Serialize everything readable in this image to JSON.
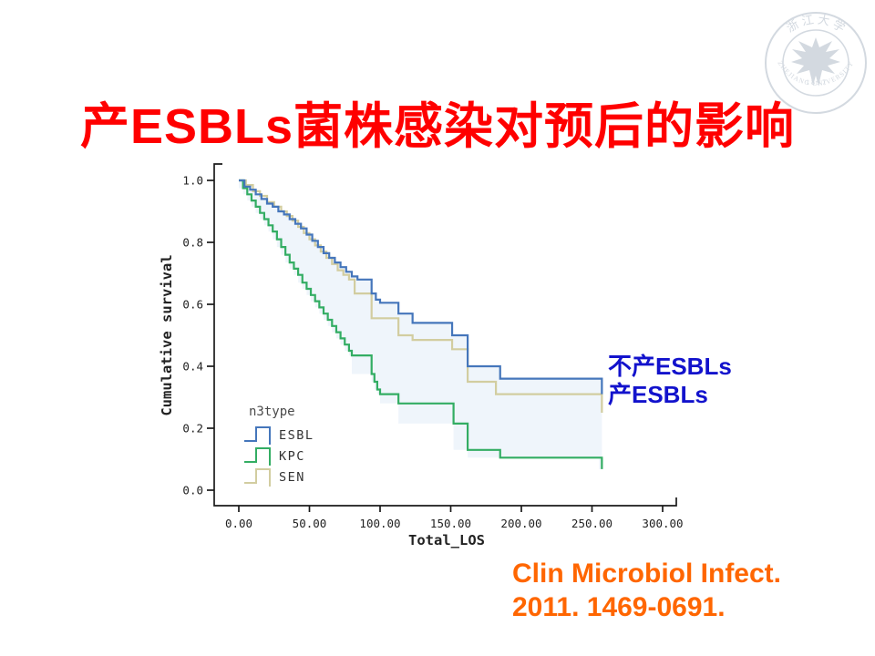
{
  "slide": {
    "title": "产ESBLs菌株感染对预后的影响",
    "title_color": "#ff0000",
    "background": "#ffffff"
  },
  "logo": {
    "description": "zhejiang-university-seal-watermark",
    "top_text": "浙 江 大 学",
    "year": "1 8 9 7",
    "bottom_text": "ZHEJIANG UNIVERSITY",
    "color": "#d3d9e0"
  },
  "annotations": {
    "line1": "不产ESBLs",
    "line2": "产ESBLs",
    "color": "#1212cc"
  },
  "citation": {
    "line1": "Clin Microbiol Infect.",
    "line2": "2011. 1469-0691.",
    "color": "#ff6600"
  },
  "chart_data": {
    "type": "line",
    "subtype": "kaplan-meier-step",
    "title": "",
    "xlabel": "Total_LOS",
    "ylabel": "Cumulative survival",
    "xlim": [
      0,
      300
    ],
    "ylim": [
      0.0,
      1.0
    ],
    "xticks": [
      "0.00",
      "50.00",
      "100.00",
      "150.00",
      "200.00",
      "250.00",
      "300.00"
    ],
    "xtick_values": [
      0,
      50,
      100,
      150,
      200,
      250,
      300
    ],
    "yticks": [
      "0.0",
      "0.2",
      "0.4",
      "0.6",
      "0.8",
      "1.0"
    ],
    "ytick_values": [
      0,
      0.2,
      0.4,
      0.6,
      0.8,
      1.0
    ],
    "grid": false,
    "legend": {
      "title": "n3type",
      "position": "inside-lower-left"
    },
    "axis_color": "#1a1a1a",
    "fill_between": {
      "upper": "ESBL",
      "lower": "KPC",
      "color": "#dfecf7",
      "opacity": 0.5
    },
    "series": [
      {
        "name": "ESBL",
        "color": "#4576bb",
        "points": [
          [
            0,
            1.0
          ],
          [
            4,
            0.98
          ],
          [
            8,
            0.97
          ],
          [
            12,
            0.955
          ],
          [
            16,
            0.94
          ],
          [
            20,
            0.925
          ],
          [
            24,
            0.915
          ],
          [
            28,
            0.9
          ],
          [
            32,
            0.89
          ],
          [
            36,
            0.875
          ],
          [
            40,
            0.86
          ],
          [
            44,
            0.845
          ],
          [
            48,
            0.825
          ],
          [
            52,
            0.805
          ],
          [
            56,
            0.785
          ],
          [
            60,
            0.765
          ],
          [
            64,
            0.75
          ],
          [
            68,
            0.735
          ],
          [
            72,
            0.72
          ],
          [
            76,
            0.705
          ],
          [
            80,
            0.69
          ],
          [
            84,
            0.68
          ],
          [
            94,
            0.635
          ],
          [
            97,
            0.615
          ],
          [
            100,
            0.605
          ],
          [
            113,
            0.57
          ],
          [
            123,
            0.54
          ],
          [
            151,
            0.5
          ],
          [
            162,
            0.4
          ],
          [
            185,
            0.36
          ],
          [
            255,
            0.36
          ],
          [
            257,
            0.31
          ]
        ]
      },
      {
        "name": "KPC",
        "color": "#33ad63",
        "points": [
          [
            0,
            1.0
          ],
          [
            3,
            0.975
          ],
          [
            6,
            0.955
          ],
          [
            9,
            0.935
          ],
          [
            12,
            0.915
          ],
          [
            15,
            0.895
          ],
          [
            18,
            0.875
          ],
          [
            21,
            0.855
          ],
          [
            24,
            0.835
          ],
          [
            27,
            0.81
          ],
          [
            30,
            0.785
          ],
          [
            33,
            0.76
          ],
          [
            36,
            0.735
          ],
          [
            39,
            0.715
          ],
          [
            42,
            0.695
          ],
          [
            45,
            0.67
          ],
          [
            48,
            0.65
          ],
          [
            51,
            0.63
          ],
          [
            54,
            0.61
          ],
          [
            57,
            0.59
          ],
          [
            60,
            0.57
          ],
          [
            63,
            0.55
          ],
          [
            66,
            0.53
          ],
          [
            69,
            0.51
          ],
          [
            72,
            0.49
          ],
          [
            75,
            0.47
          ],
          [
            78,
            0.45
          ],
          [
            80,
            0.435
          ],
          [
            94,
            0.375
          ],
          [
            96,
            0.35
          ],
          [
            98,
            0.325
          ],
          [
            100,
            0.31
          ],
          [
            113,
            0.28
          ],
          [
            152,
            0.215
          ],
          [
            162,
            0.13
          ],
          [
            185,
            0.105
          ],
          [
            255,
            0.105
          ],
          [
            257,
            0.068
          ]
        ]
      },
      {
        "name": "SEN",
        "color": "#d2cda0",
        "points": [
          [
            0,
            1.0
          ],
          [
            5,
            0.985
          ],
          [
            10,
            0.965
          ],
          [
            15,
            0.95
          ],
          [
            20,
            0.93
          ],
          [
            25,
            0.915
          ],
          [
            30,
            0.9
          ],
          [
            34,
            0.885
          ],
          [
            38,
            0.87
          ],
          [
            42,
            0.85
          ],
          [
            46,
            0.83
          ],
          [
            50,
            0.81
          ],
          [
            54,
            0.79
          ],
          [
            58,
            0.77
          ],
          [
            62,
            0.75
          ],
          [
            66,
            0.73
          ],
          [
            70,
            0.71
          ],
          [
            74,
            0.695
          ],
          [
            78,
            0.68
          ],
          [
            82,
            0.635
          ],
          [
            94,
            0.555
          ],
          [
            113,
            0.5
          ],
          [
            123,
            0.485
          ],
          [
            151,
            0.455
          ],
          [
            162,
            0.35
          ],
          [
            182,
            0.31
          ],
          [
            255,
            0.31
          ],
          [
            257,
            0.25
          ]
        ]
      }
    ]
  }
}
